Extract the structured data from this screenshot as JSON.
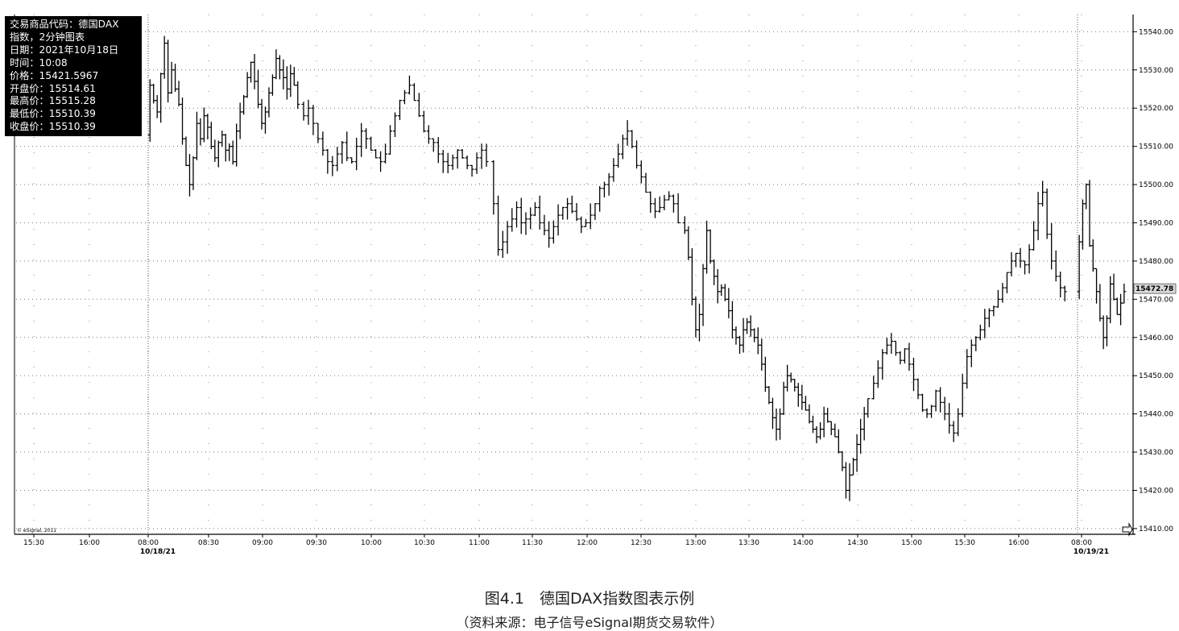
{
  "info_box": {
    "lines": [
      "交易商品代码：德国DAX",
      "指数，2分钟图表",
      "日期：2021年10月18日",
      "时间：10:08",
      "价格：15421.5967",
      "开盘价：15514.61",
      "最高价：15515.28",
      "最低价：15510.39",
      "收盘价：15510.39"
    ]
  },
  "watermark": "© eSignal, 2011",
  "caption": {
    "title": "图4.1　德国DAX指数图表示例",
    "source": "（资料来源：电子信号eSignal期货交易软件）"
  },
  "chart_data": {
    "type": "ohlc",
    "y_ticks": [
      "15410.00",
      "15420.00",
      "15430.00",
      "15440.00",
      "15450.00",
      "15460.00",
      "15470.00",
      "15480.00",
      "15490.00",
      "15500.00",
      "15510.00",
      "15520.00",
      "15530.00",
      "15540.00"
    ],
    "ylim": [
      15408.5,
      15544.5
    ],
    "last_price_label": "15472.78",
    "x_ticks": [
      {
        "label": "15:30",
        "date": ""
      },
      {
        "label": "16:00",
        "date": ""
      },
      {
        "label": "08:00",
        "date": "10/18/21"
      },
      {
        "label": "08:30",
        "date": ""
      },
      {
        "label": "09:00",
        "date": ""
      },
      {
        "label": "09:30",
        "date": ""
      },
      {
        "label": "10:00",
        "date": ""
      },
      {
        "label": "10:30",
        "date": ""
      },
      {
        "label": "11:00",
        "date": ""
      },
      {
        "label": "11:30",
        "date": ""
      },
      {
        "label": "12:00",
        "date": ""
      },
      {
        "label": "12:30",
        "date": ""
      },
      {
        "label": "13:00",
        "date": ""
      },
      {
        "label": "13:30",
        "date": ""
      },
      {
        "label": "14:00",
        "date": ""
      },
      {
        "label": "14:30",
        "date": ""
      },
      {
        "label": "15:00",
        "date": ""
      },
      {
        "label": "15:30",
        "date": ""
      },
      {
        "label": "16:00",
        "date": ""
      },
      {
        "label": "08:00",
        "date": "10/19/21"
      }
    ],
    "session_breaks": [
      "10/18/21 08:00",
      "10/19/21 08:00"
    ],
    "price_path": [
      [
        15513,
        15526,
        15522,
        15519,
        15529,
        15537,
        15524,
        15530,
        15525,
        15521,
        15512,
        15505,
        15500,
        15507,
        15516,
        15512,
        15518,
        15515,
        15510,
        15507,
        15511,
        15513,
        15509,
        15510,
        15506,
        15514,
        15519,
        15523,
        15528,
        15532,
        15527,
        15521,
        15516,
        15519,
        15524,
        15528,
        15533,
        15530,
        15528,
        15525,
        15529,
        15526,
        15521
      ],
      [
        15521,
        15518,
        15520,
        15516,
        15512,
        15509,
        15506,
        15505,
        15508,
        15511,
        15507,
        15506,
        15510,
        15514,
        15512,
        15509,
        15507,
        15506,
        15508,
        15514,
        15518,
        15522,
        15524,
        15526,
        15522,
        15518,
        15514,
        15512,
        15511,
        15508,
        15506,
        15505,
        15507,
        15509,
        15507,
        15505,
        15504,
        15507,
        15509,
        15506
      ],
      [
        15506,
        15495,
        15483,
        15485,
        15489,
        15491,
        15494,
        15490,
        15491,
        15492,
        15494,
        15490,
        15488,
        15486,
        15489,
        15492,
        15494,
        15495,
        15493,
        15491,
        15489,
        15490,
        15492,
        15495,
        15499,
        15500,
        15502,
        15505,
        15508,
        15512,
        15514,
        15510,
        15505,
        15502,
        15498,
        15495,
        15493,
        15494,
        15496,
        15497,
        15495,
        15490
      ],
      [
        15490,
        15488,
        15481,
        15470,
        15462,
        15466,
        15478,
        15488,
        15480,
        15476,
        15472,
        15473,
        15470,
        15467,
        15462,
        15460,
        15458,
        15462,
        15464,
        15462,
        15460,
        15458,
        15453,
        15447,
        15443,
        15439,
        15436,
        15440,
        15447,
        15450,
        15449,
        15447,
        15445,
        15443,
        15441,
        15438,
        15436,
        15434,
        15436,
        15440,
        15438,
        15436,
        15434,
        15430,
        15426,
        15420,
        15424,
        15428,
        15432,
        15436,
        15440,
        15444
      ],
      [
        15444,
        15448,
        15452,
        15456,
        15458,
        15459,
        15456,
        15454,
        15457,
        15453,
        15449,
        15445,
        15441,
        15440,
        15442,
        15446,
        15443,
        15440,
        15437,
        15435,
        15440,
        15448,
        15455,
        15458,
        15460,
        15462,
        15465,
        15467,
        15468,
        15470,
        15473,
        15477,
        15480,
        15482,
        15480,
        15479,
        15483,
        15488,
        15495,
        15498,
        15487,
        15480,
        15476,
        15473,
        15472
      ],
      [
        15472,
        15485,
        15495,
        15500,
        15484,
        15478,
        15472,
        15465,
        15460,
        15465,
        15474,
        15470,
        15466,
        15469,
        15472
      ]
    ]
  }
}
